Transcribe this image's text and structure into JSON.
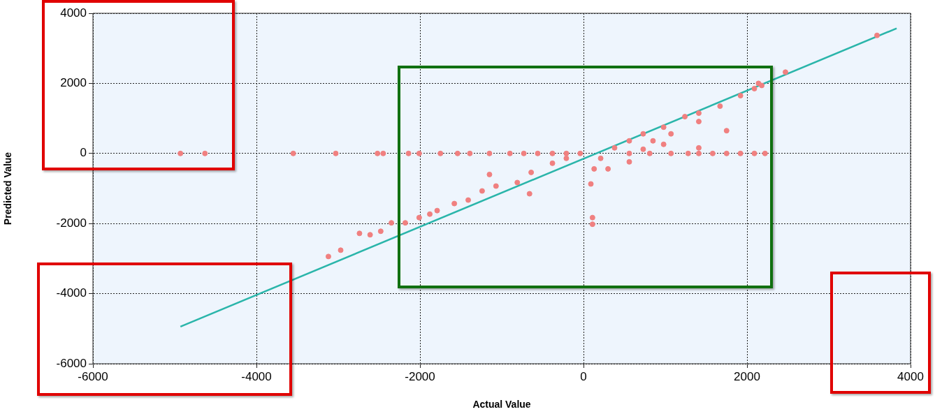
{
  "chart_data": {
    "type": "scatter",
    "xlabel": "Actual Value",
    "ylabel": "Predicted Value",
    "xlim": [
      -6000,
      4000
    ],
    "ylim": [
      -6000,
      4000
    ],
    "xticks": [
      -6000,
      -4000,
      -2000,
      0,
      2000,
      4000
    ],
    "yticks": [
      -6000,
      -4000,
      -2000,
      0,
      2000,
      4000
    ],
    "grid": true,
    "series": [
      {
        "marker": "circle",
        "color": "#f08080",
        "x": [
          -4930,
          -4630,
          -3550,
          -3030,
          -2520,
          -2450,
          -2140,
          -2010,
          -1750,
          -1540,
          -1390,
          -1150,
          -900,
          -730,
          -560,
          -380,
          -210,
          -40,
          560,
          810,
          1070,
          1280,
          1410,
          1580,
          1750,
          1920,
          2090,
          2220,
          3590,
          2470,
          2180,
          -3120,
          -2970,
          -2740,
          -2610,
          -2480,
          -2350,
          -2180,
          -2010,
          -1880,
          -1790,
          -1580,
          -1410,
          -1240,
          -1070,
          -1150,
          -810,
          -660,
          -640,
          -380,
          -210,
          90,
          110,
          110,
          130,
          210,
          380,
          560,
          730,
          980,
          1240,
          1410,
          1670,
          1920,
          2090,
          2140,
          1410,
          1750,
          850,
          1070,
          980,
          560,
          300,
          1410,
          730
        ],
        "values": [
          0,
          0,
          0,
          0,
          0,
          0,
          0,
          0,
          0,
          0,
          0,
          0,
          0,
          0,
          0,
          0,
          0,
          0,
          0,
          0,
          0,
          0,
          0,
          0,
          0,
          0,
          0,
          0,
          3370,
          2320,
          1940,
          -2940,
          -2760,
          -2280,
          -2320,
          -2220,
          -1980,
          -1980,
          -1830,
          -1730,
          -1630,
          -1430,
          -1330,
          -1070,
          -930,
          -600,
          -830,
          -1150,
          -540,
          -280,
          -140,
          -870,
          -1830,
          -2020,
          -440,
          -140,
          160,
          360,
          560,
          750,
          1050,
          1150,
          1350,
          1650,
          1850,
          2000,
          910,
          650,
          360,
          560,
          260,
          -240,
          -440,
          160,
          120
        ]
      },
      {
        "type": "line",
        "color": "#2ab5aa",
        "x": [
          -4930,
          3830
        ],
        "values": [
          -4940,
          3570
        ]
      }
    ]
  }
}
